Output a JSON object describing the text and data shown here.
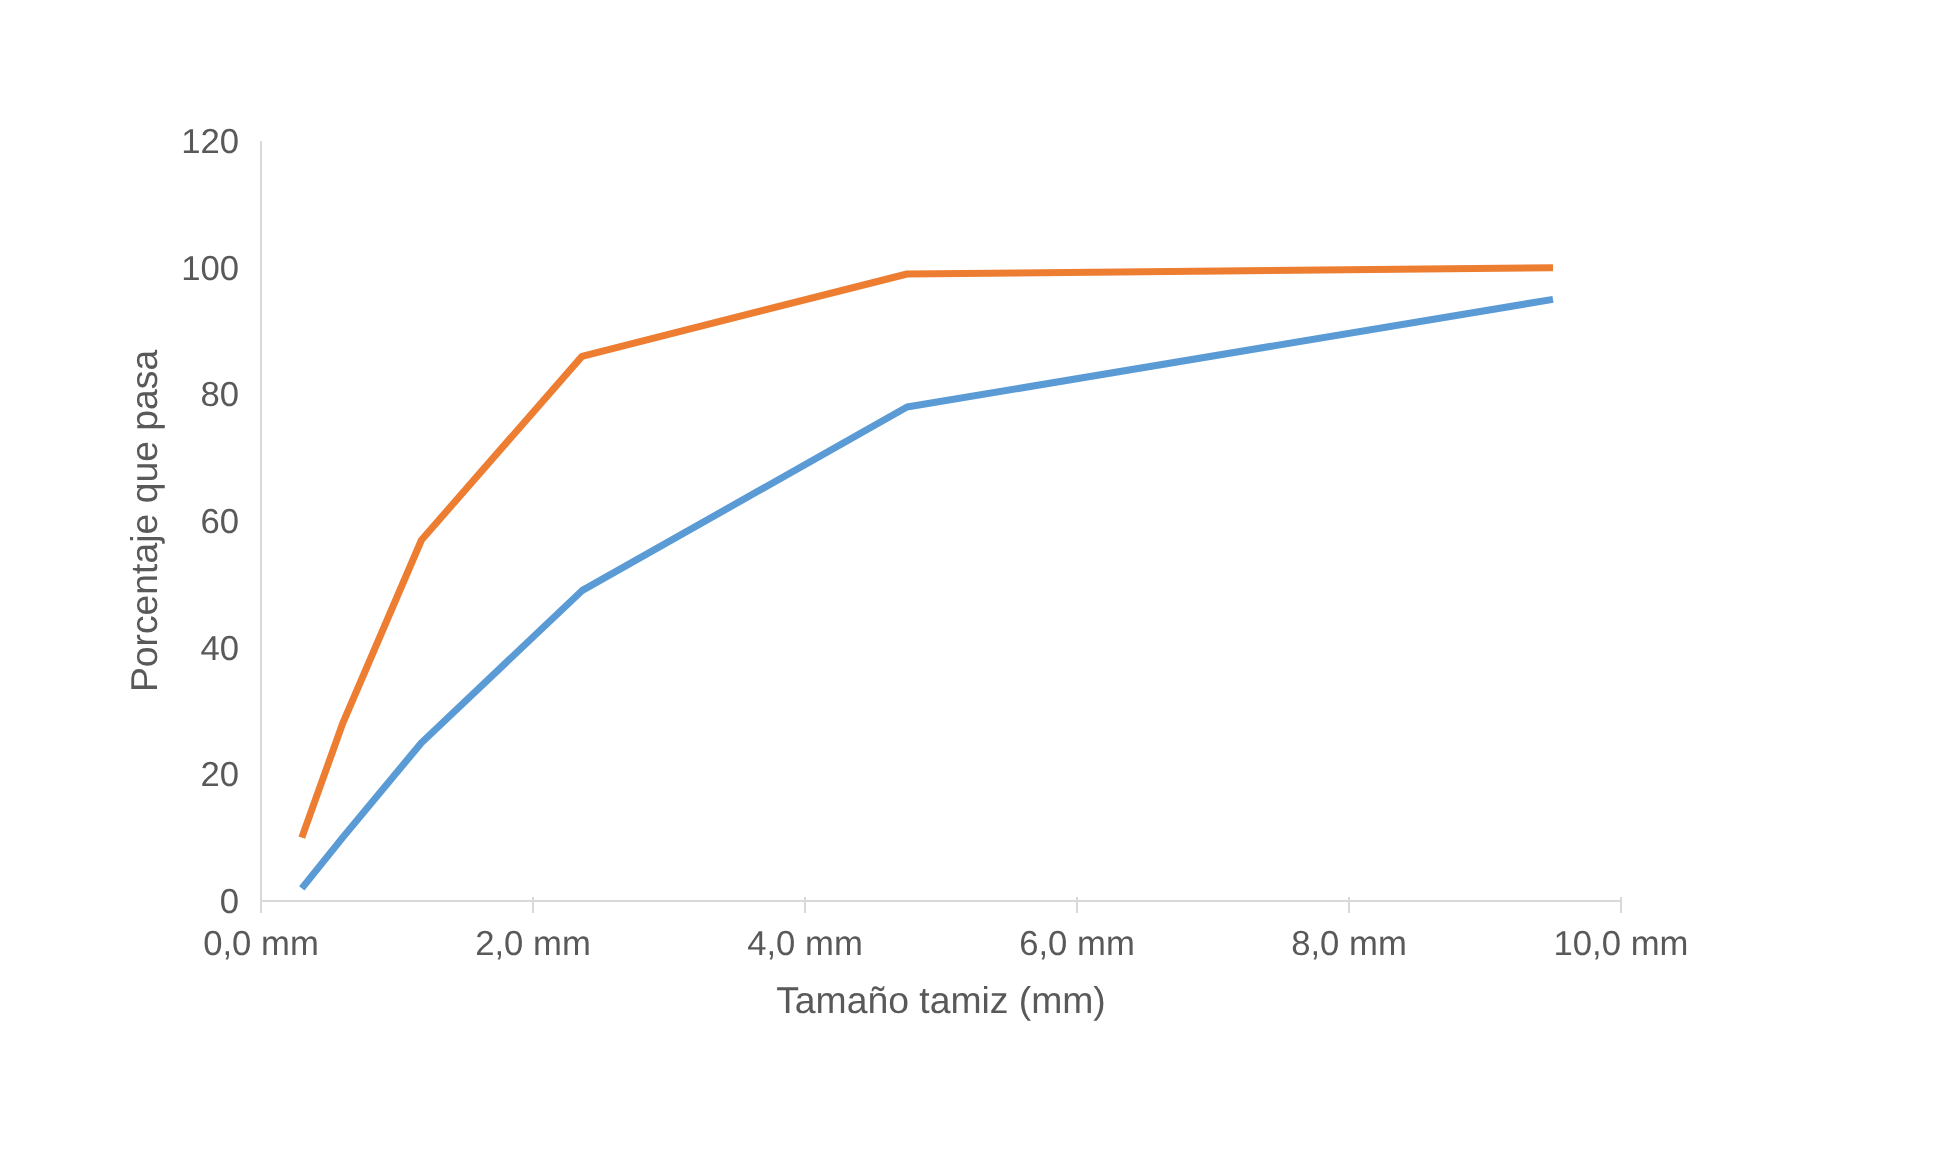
{
  "chart_data": {
    "type": "line",
    "xlabel": "Tamaño tamiz (mm)",
    "ylabel": "Porcentaje que pasa",
    "xlim": [
      0,
      10
    ],
    "xticks": [
      {
        "value": 0,
        "label": "0,0 mm"
      },
      {
        "value": 2,
        "label": "2,0 mm"
      },
      {
        "value": 4,
        "label": "4,0 mm"
      },
      {
        "value": 6,
        "label": "6,0 mm"
      },
      {
        "value": 8,
        "label": "8,0 mm"
      },
      {
        "value": 10,
        "label": "10,0 mm"
      }
    ],
    "ylim": [
      0,
      120
    ],
    "yticks": [
      0,
      20,
      40,
      60,
      80,
      100,
      120
    ],
    "grid": false,
    "x": [
      0.3,
      0.6,
      1.18,
      2.36,
      4.75,
      9.5
    ],
    "series": [
      {
        "color": "#5b9bd5",
        "values": [
          2,
          10,
          25,
          49,
          78,
          95
        ]
      },
      {
        "color": "#ed7d31",
        "values": [
          10,
          28,
          57,
          86,
          99,
          100
        ]
      }
    ]
  }
}
